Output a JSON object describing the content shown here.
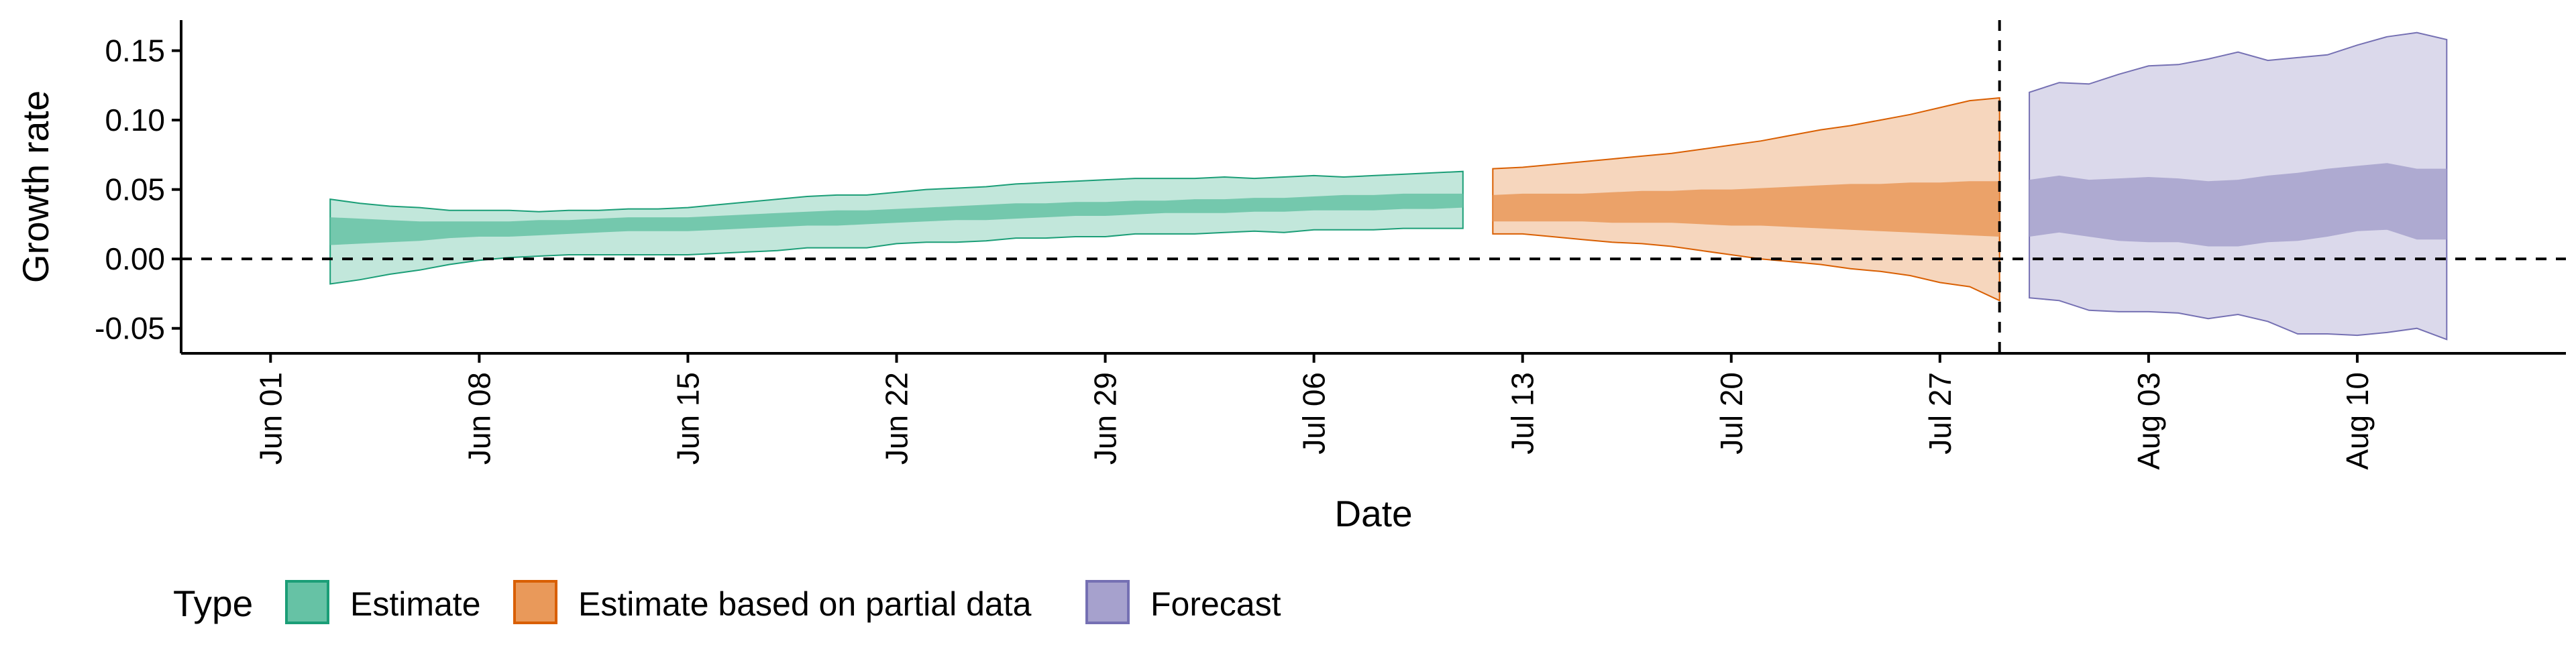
{
  "chart_data": {
    "type": "area",
    "title": "",
    "xlabel": "Date",
    "ylabel": "Growth rate",
    "x_type": "date",
    "xlim": [
      "2020-05-29",
      "2020-08-17"
    ],
    "ylim": [
      -0.068,
      0.172
    ],
    "x_ticks": [
      {
        "date": "2020-06-01",
        "label": "Jun 01"
      },
      {
        "date": "2020-06-08",
        "label": "Jun 08"
      },
      {
        "date": "2020-06-15",
        "label": "Jun 15"
      },
      {
        "date": "2020-06-22",
        "label": "Jun 22"
      },
      {
        "date": "2020-06-29",
        "label": "Jun 29"
      },
      {
        "date": "2020-07-06",
        "label": "Jul 06"
      },
      {
        "date": "2020-07-13",
        "label": "Jul 13"
      },
      {
        "date": "2020-07-20",
        "label": "Jul 20"
      },
      {
        "date": "2020-07-27",
        "label": "Jul 27"
      },
      {
        "date": "2020-08-03",
        "label": "Aug 03"
      },
      {
        "date": "2020-08-10",
        "label": "Aug 10"
      }
    ],
    "y_ticks": [
      {
        "value": -0.05,
        "label": "-0.05"
      },
      {
        "value": 0.0,
        "label": "0.00"
      },
      {
        "value": 0.05,
        "label": "0.05"
      },
      {
        "value": 0.1,
        "label": "0.10"
      },
      {
        "value": 0.15,
        "label": "0.15"
      }
    ],
    "reference_lines": [
      {
        "axis": "y",
        "value": 0.0,
        "style": "dashed"
      },
      {
        "axis": "x",
        "value": "2020-07-29",
        "style": "dashed"
      }
    ],
    "grid": false,
    "legend": {
      "title": "Type",
      "position": "bottom-left",
      "entries": [
        "Estimate",
        "Estimate based on partial data",
        "Forecast"
      ]
    },
    "series": [
      {
        "name": "Estimate",
        "fill": "#66c2a5",
        "stroke": "#1b9e77",
        "x": [
          "2020-06-03",
          "2020-06-04",
          "2020-06-05",
          "2020-06-06",
          "2020-06-07",
          "2020-06-08",
          "2020-06-09",
          "2020-06-10",
          "2020-06-11",
          "2020-06-12",
          "2020-06-13",
          "2020-06-14",
          "2020-06-15",
          "2020-06-16",
          "2020-06-17",
          "2020-06-18",
          "2020-06-19",
          "2020-06-20",
          "2020-06-21",
          "2020-06-22",
          "2020-06-23",
          "2020-06-24",
          "2020-06-25",
          "2020-06-26",
          "2020-06-27",
          "2020-06-28",
          "2020-06-29",
          "2020-06-30",
          "2020-07-01",
          "2020-07-02",
          "2020-07-03",
          "2020-07-04",
          "2020-07-05",
          "2020-07-06",
          "2020-07-07",
          "2020-07-08",
          "2020-07-09",
          "2020-07-10",
          "2020-07-11"
        ],
        "lower_90": [
          -0.018,
          -0.015,
          -0.011,
          -0.008,
          -0.004,
          -0.001,
          0.001,
          0.002,
          0.003,
          0.003,
          0.003,
          0.003,
          0.003,
          0.004,
          0.005,
          0.006,
          0.008,
          0.008,
          0.008,
          0.011,
          0.012,
          0.012,
          0.013,
          0.015,
          0.015,
          0.016,
          0.016,
          0.018,
          0.018,
          0.018,
          0.019,
          0.02,
          0.019,
          0.021,
          0.021,
          0.021,
          0.022,
          0.022,
          0.022
        ],
        "upper_90": [
          0.043,
          0.04,
          0.038,
          0.037,
          0.035,
          0.035,
          0.035,
          0.034,
          0.035,
          0.035,
          0.036,
          0.036,
          0.037,
          0.039,
          0.041,
          0.043,
          0.045,
          0.046,
          0.046,
          0.048,
          0.05,
          0.051,
          0.052,
          0.054,
          0.055,
          0.056,
          0.057,
          0.058,
          0.058,
          0.058,
          0.059,
          0.058,
          0.059,
          0.06,
          0.059,
          0.06,
          0.061,
          0.062,
          0.063
        ],
        "lower_50": [
          0.01,
          0.011,
          0.012,
          0.013,
          0.015,
          0.016,
          0.016,
          0.017,
          0.018,
          0.019,
          0.02,
          0.02,
          0.02,
          0.021,
          0.022,
          0.023,
          0.024,
          0.024,
          0.025,
          0.026,
          0.027,
          0.028,
          0.028,
          0.029,
          0.03,
          0.031,
          0.031,
          0.032,
          0.033,
          0.033,
          0.033,
          0.034,
          0.034,
          0.035,
          0.035,
          0.035,
          0.036,
          0.036,
          0.037
        ],
        "upper_50": [
          0.03,
          0.029,
          0.028,
          0.027,
          0.027,
          0.027,
          0.027,
          0.028,
          0.028,
          0.029,
          0.03,
          0.03,
          0.03,
          0.031,
          0.032,
          0.033,
          0.034,
          0.035,
          0.035,
          0.036,
          0.037,
          0.038,
          0.039,
          0.04,
          0.04,
          0.041,
          0.041,
          0.042,
          0.042,
          0.043,
          0.043,
          0.044,
          0.044,
          0.045,
          0.046,
          0.046,
          0.047,
          0.047,
          0.047
        ]
      },
      {
        "name": "Estimate based on partial data",
        "fill": "#e9995a",
        "stroke": "#d95f02",
        "x": [
          "2020-07-12",
          "2020-07-13",
          "2020-07-14",
          "2020-07-15",
          "2020-07-16",
          "2020-07-17",
          "2020-07-18",
          "2020-07-19",
          "2020-07-20",
          "2020-07-21",
          "2020-07-22",
          "2020-07-23",
          "2020-07-24",
          "2020-07-25",
          "2020-07-26",
          "2020-07-27",
          "2020-07-28",
          "2020-07-29"
        ],
        "lower_90": [
          0.018,
          0.018,
          0.016,
          0.014,
          0.012,
          0.011,
          0.009,
          0.006,
          0.003,
          0.0,
          -0.002,
          -0.004,
          -0.007,
          -0.009,
          -0.012,
          -0.017,
          -0.02,
          -0.03
        ],
        "upper_90": [
          0.065,
          0.066,
          0.068,
          0.07,
          0.072,
          0.074,
          0.076,
          0.079,
          0.082,
          0.085,
          0.089,
          0.093,
          0.096,
          0.1,
          0.104,
          0.109,
          0.114,
          0.116
        ],
        "lower_50": [
          0.027,
          0.027,
          0.027,
          0.027,
          0.026,
          0.026,
          0.026,
          0.025,
          0.024,
          0.024,
          0.023,
          0.022,
          0.021,
          0.02,
          0.019,
          0.018,
          0.017,
          0.016
        ],
        "upper_50": [
          0.046,
          0.047,
          0.047,
          0.047,
          0.048,
          0.049,
          0.049,
          0.05,
          0.05,
          0.051,
          0.052,
          0.053,
          0.054,
          0.054,
          0.055,
          0.055,
          0.056,
          0.056
        ]
      },
      {
        "name": "Forecast",
        "fill": "#a6a1cd",
        "stroke": "#7570b3",
        "x": [
          "2020-07-30",
          "2020-07-31",
          "2020-08-01",
          "2020-08-02",
          "2020-08-03",
          "2020-08-04",
          "2020-08-05",
          "2020-08-06",
          "2020-08-07",
          "2020-08-08",
          "2020-08-09",
          "2020-08-10",
          "2020-08-11",
          "2020-08-12",
          "2020-08-13"
        ],
        "lower_90": [
          -0.028,
          -0.03,
          -0.037,
          -0.038,
          -0.038,
          -0.039,
          -0.043,
          -0.04,
          -0.045,
          -0.054,
          -0.054,
          -0.055,
          -0.053,
          -0.05,
          -0.058
        ],
        "upper_90": [
          0.12,
          0.127,
          0.126,
          0.133,
          0.139,
          0.14,
          0.144,
          0.149,
          0.143,
          0.145,
          0.147,
          0.154,
          0.16,
          0.163,
          0.158
        ],
        "lower_50": [
          0.016,
          0.019,
          0.016,
          0.013,
          0.012,
          0.012,
          0.009,
          0.009,
          0.012,
          0.013,
          0.016,
          0.02,
          0.021,
          0.014,
          0.014
        ],
        "upper_50": [
          0.057,
          0.06,
          0.057,
          0.058,
          0.059,
          0.058,
          0.056,
          0.057,
          0.06,
          0.062,
          0.065,
          0.067,
          0.069,
          0.065,
          0.065
        ]
      }
    ]
  }
}
